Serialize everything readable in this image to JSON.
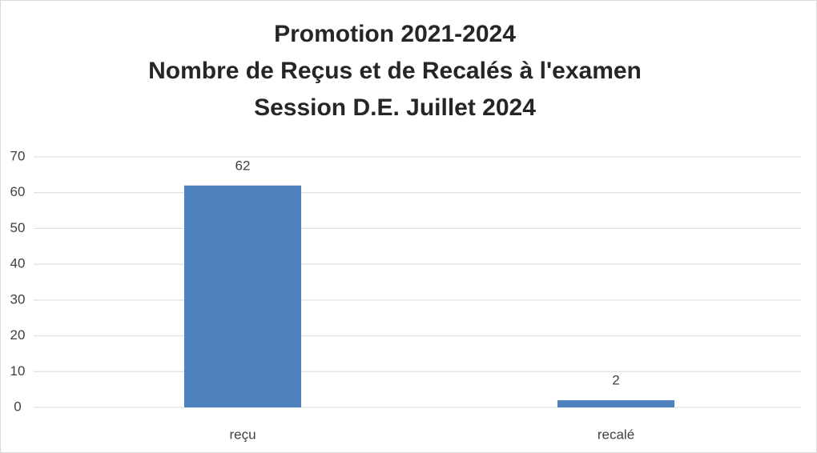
{
  "chart_data": {
    "type": "bar",
    "title": [
      "Promotion 2021-2024",
      "Nombre de Reçus et de Recalés à l'examen",
      "Session D.E. Juillet 2024"
    ],
    "categories": [
      "reçu",
      "recalé"
    ],
    "values": [
      62,
      2
    ],
    "color": "#4f81bd",
    "ylim": [
      0,
      70
    ],
    "yticks": [
      0,
      10,
      20,
      30,
      40,
      50,
      60,
      70
    ],
    "grid": true
  }
}
